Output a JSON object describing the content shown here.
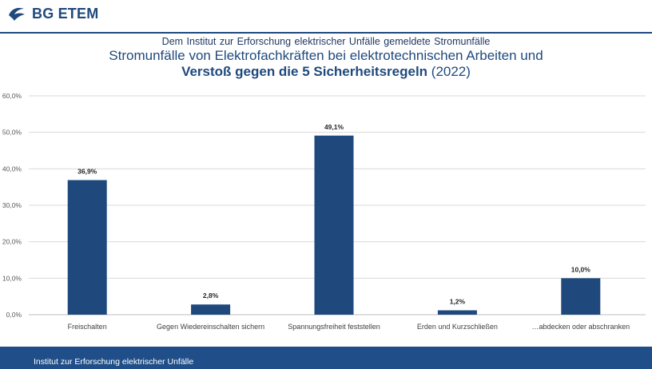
{
  "header": {
    "logo_text": "BG ETEM",
    "logo_icon": "bg-etem-bird-logo",
    "brand_color": "#1f497d"
  },
  "title": {
    "subtitle": "Dem Institut zur Erforschung elektrischer Unfälle gemeldete Stromunfälle",
    "line1": "Stromunfälle von Elektrofachkräften bei elektrotechnischen Arbeiten und",
    "line2_bold": "Verstoß gegen die 5 Sicherheitsregeln",
    "line2_rest": " (2022)"
  },
  "footer": {
    "text": "Institut zur Erforschung elektrischer Unfälle",
    "color": "#1f4e89"
  },
  "chart_data": {
    "type": "bar",
    "categories": [
      "Freischalten",
      "Gegen Wiedereinschalten sichern",
      "Spannungsfreiheit feststellen",
      "Erden und Kurzschließen",
      "…abdecken oder abschranken"
    ],
    "values": [
      36.9,
      2.8,
      49.1,
      1.2,
      10.0
    ],
    "data_labels": [
      "36,9%",
      "2,8%",
      "49,1%",
      "1,2%",
      "10,0%"
    ],
    "ylim": [
      0,
      60
    ],
    "yticks": [
      0,
      10,
      20,
      30,
      40,
      50,
      60
    ],
    "ytick_labels": [
      "0,0%",
      "10,0%",
      "20,0%",
      "30,0%",
      "40,0%",
      "50,0%",
      "60,0%"
    ],
    "grid": true,
    "bar_color": "#1f497d",
    "grid_color": "#d9d9d9"
  }
}
